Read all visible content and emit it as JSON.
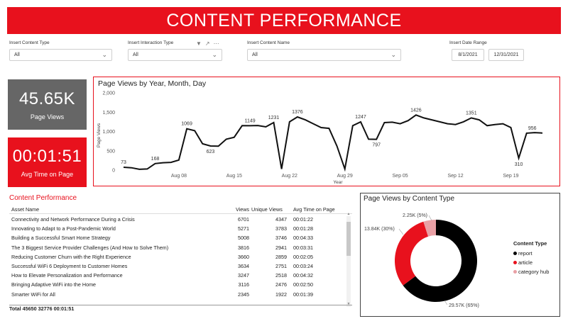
{
  "title": "CONTENT PERFORMANCE",
  "colors": {
    "accent": "#e8111d",
    "kpi_gray": "#666666",
    "report": "#000000",
    "article": "#e8111d",
    "category_hub": "#e9a0a5"
  },
  "filters": {
    "content_type": {
      "label": "Insert Content Type",
      "value": "All"
    },
    "interaction_type": {
      "label": "Insert Interaction Type",
      "value": "All"
    },
    "content_name": {
      "label": "Insert Content Name",
      "value": "All"
    },
    "date_range": {
      "label": "Insert Date Range",
      "start": "8/1/2021",
      "end": "12/31/2021"
    },
    "icons": [
      "filter-icon",
      "expand-icon",
      "more-options-icon"
    ]
  },
  "kpis": {
    "page_views": {
      "value": "45.65K",
      "label": "Page Views"
    },
    "avg_time": {
      "value": "00:01:51",
      "label": "Avg Time on Page"
    }
  },
  "line_chart": {
    "title": "Page Views by Year, Month, Day",
    "xlabel": "Year",
    "ylabel": "Page Views"
  },
  "table": {
    "title": "Content Performance",
    "columns": [
      "Asset Name",
      "Views",
      "Unique Views",
      "Avg Time on Page"
    ],
    "rows": [
      [
        "Connectivity and Network Performance During a Crisis",
        "6701",
        "4347",
        "00:01:22"
      ],
      [
        "Innovating to Adapt to a Post-Pandemic World",
        "5271",
        "3783",
        "00:01:28"
      ],
      [
        "Building a Successful Smart Home Strategy",
        "5008",
        "3746",
        "00:04:33"
      ],
      [
        "The 3 Biggest Service Provider Challenges (And How to Solve Them)",
        "3816",
        "2941",
        "00:03:31"
      ],
      [
        "Reducing Customer Churn with the Right Experience",
        "3660",
        "2859",
        "00:02:05"
      ],
      [
        "Successful WiFi 6 Deployment to Customer Homes",
        "3634",
        "2751",
        "00:03:24"
      ],
      [
        "How to Elevate Personalization and Performance",
        "3247",
        "2518",
        "00:04:32"
      ],
      [
        "Bringing Adaptive WiFi into the Home",
        "3116",
        "2476",
        "00:02:50"
      ],
      [
        "Smarter WiFi for All",
        "2345",
        "1922",
        "00:01:39"
      ]
    ],
    "total": [
      "Total",
      "45650",
      "32776",
      "00:01:51"
    ]
  },
  "donut": {
    "title": "Page Views by Content Type",
    "legend_title": "Content Type",
    "labels": [
      "2.25K (5%)",
      "13.84K (30%)",
      "29.57K (65%)"
    ]
  },
  "chart_data": [
    {
      "type": "line",
      "title": "Page Views by Year, Month, Day",
      "xlabel": "Year",
      "ylabel": "Page Views",
      "ylim": [
        0,
        2000
      ],
      "yticks": [
        0,
        500,
        1000,
        1500,
        2000
      ],
      "ytick_labels": [
        "0",
        "500",
        "1,000",
        "1,500",
        "2,000"
      ],
      "xticks_day": [
        8,
        15,
        22,
        29,
        36,
        43,
        50
      ],
      "xtick_labels": [
        "Aug 08",
        "Aug 15",
        "Aug 22",
        "Aug 29",
        "Sep 05",
        "Sep 12",
        "Sep 19"
      ],
      "x": [
        1,
        2,
        3,
        4,
        5,
        6,
        7,
        8,
        9,
        10,
        11,
        12,
        13,
        14,
        15,
        16,
        17,
        18,
        19,
        20,
        21,
        22,
        23,
        24,
        25,
        26,
        27,
        28,
        29,
        30,
        31,
        32,
        33,
        34,
        35,
        36,
        37,
        38,
        39,
        40,
        41,
        42,
        43,
        44,
        45,
        46,
        47,
        48,
        49,
        50,
        51,
        52,
        53,
        54
      ],
      "values": [
        73,
        60,
        20,
        30,
        168,
        190,
        200,
        260,
        1069,
        1020,
        680,
        623,
        620,
        800,
        850,
        1150,
        1149,
        1155,
        1120,
        1231,
        30,
        1250,
        1376,
        1300,
        1200,
        1100,
        1080,
        620,
        30,
        1150,
        1247,
        800,
        797,
        1230,
        1240,
        1200,
        1280,
        1426,
        1350,
        1300,
        1250,
        1200,
        1180,
        1250,
        1351,
        1300,
        1150,
        1180,
        1200,
        1100,
        310,
        956,
        970,
        960
      ],
      "point_labels": [
        {
          "x": 1,
          "label": "73"
        },
        {
          "x": 5,
          "label": "168"
        },
        {
          "x": 9,
          "label": "1069"
        },
        {
          "x": 12,
          "label": "623"
        },
        {
          "x": 17,
          "label": "1149"
        },
        {
          "x": 20,
          "label": "1231"
        },
        {
          "x": 23,
          "label": "1376"
        },
        {
          "x": 31,
          "label": "1247"
        },
        {
          "x": 33,
          "label": "797"
        },
        {
          "x": 38,
          "label": "1426"
        },
        {
          "x": 45,
          "label": "1351"
        },
        {
          "x": 51,
          "label": "310"
        },
        {
          "x": 52,
          "label": "956"
        }
      ]
    },
    {
      "type": "pie",
      "title": "Page Views by Content Type",
      "categories": [
        "report",
        "article",
        "category hub"
      ],
      "values": [
        29.57,
        13.84,
        2.25
      ],
      "percent": [
        65,
        30,
        5
      ],
      "unit": "K"
    }
  ]
}
